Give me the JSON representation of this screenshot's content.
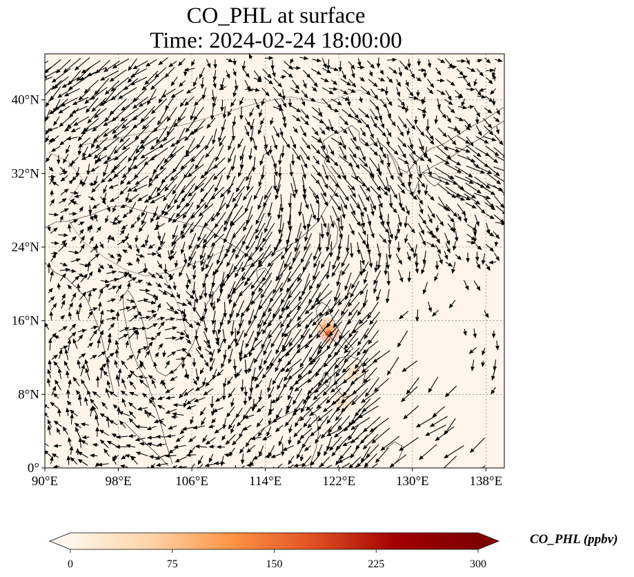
{
  "title": {
    "line1": "CO_PHL at surface",
    "line2": "Time: 2024-02-24 18:00:00"
  },
  "map": {
    "lon_range": [
      90,
      140
    ],
    "lat_range": [
      0,
      45
    ],
    "lon_ticks": [
      {
        "value": 90,
        "label": "90°E"
      },
      {
        "value": 98,
        "label": "98°E"
      },
      {
        "value": 106,
        "label": "106°E"
      },
      {
        "value": 114,
        "label": "114°E"
      },
      {
        "value": 122,
        "label": "122°E"
      },
      {
        "value": 130,
        "label": "130°E"
      },
      {
        "value": 138,
        "label": "138°E"
      }
    ],
    "lat_ticks": [
      {
        "value": 0,
        "label": "0°"
      },
      {
        "value": 8,
        "label": "8°N"
      },
      {
        "value": 16,
        "label": "16°N"
      },
      {
        "value": 24,
        "label": "24°N"
      },
      {
        "value": 32,
        "label": "32°N"
      },
      {
        "value": 40,
        "label": "40°N"
      }
    ],
    "background_color": "#fff5eb",
    "gridlines": true,
    "coastlines": true,
    "wind_vectors": true,
    "hotspots": [
      {
        "lon": 120.9,
        "lat": 14.6,
        "value": 160
      },
      {
        "lon": 120.6,
        "lat": 15.3,
        "value": 60
      },
      {
        "lon": 123.5,
        "lat": 10.3,
        "value": 40
      },
      {
        "lon": 122.5,
        "lat": 7.2,
        "value": 30
      }
    ]
  },
  "colorbar": {
    "label": "CO_PHL (ppbv)",
    "min": 0,
    "max": 300,
    "ticks": [
      {
        "value": 0,
        "label": "0"
      },
      {
        "value": 75,
        "label": "75"
      },
      {
        "value": 150,
        "label": "150"
      },
      {
        "value": 225,
        "label": "225"
      },
      {
        "value": 300,
        "label": "300"
      }
    ],
    "colormap": [
      "#fff5eb",
      "#fdd2a5",
      "#fd9243",
      "#df4f23",
      "#a00000",
      "#7f0000"
    ],
    "extend": "both"
  }
}
